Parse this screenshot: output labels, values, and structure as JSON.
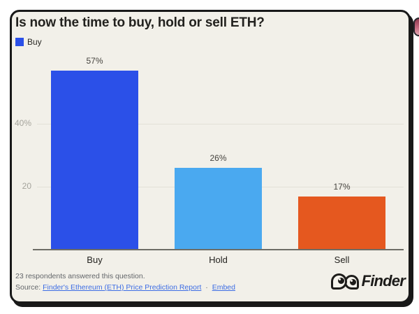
{
  "header": {
    "title": "Is now the time to buy, hold or sell ETH?"
  },
  "chart_data": {
    "type": "bar",
    "title": "Is now the time to buy, hold or sell ETH?",
    "categories": [
      "Buy",
      "Hold",
      "Sell"
    ],
    "values": [
      57,
      26,
      17
    ],
    "value_labels": [
      "57%",
      "26%",
      "17%"
    ],
    "colors": [
      "#2b50e8",
      "#4aa9f0",
      "#e5581f"
    ],
    "unit": "%",
    "ylim": [
      0,
      61
    ],
    "yticks": [
      {
        "value": 40,
        "label": "40%"
      },
      {
        "value": 20,
        "label": "20"
      }
    ],
    "grid": "horizontal",
    "legend": [
      {
        "label": "Buy",
        "color": "#2b50e8"
      }
    ],
    "legend_position": "top-left"
  },
  "footer": {
    "respondents": "23 respondents answered this question.",
    "source_label": "Source:",
    "source_link": "Finder's Ethereum (ETH) Price Prediction Report",
    "separator": "·",
    "embed_link": "Embed",
    "link_color": "#3d6de4"
  },
  "branding": {
    "logo_text": "Finder"
  },
  "card": {
    "background": "#f2f0e9",
    "border_color": "#191919"
  },
  "edge_element": {
    "color_top": "#8f3a50",
    "color_bottom": "#e2a5b1"
  }
}
